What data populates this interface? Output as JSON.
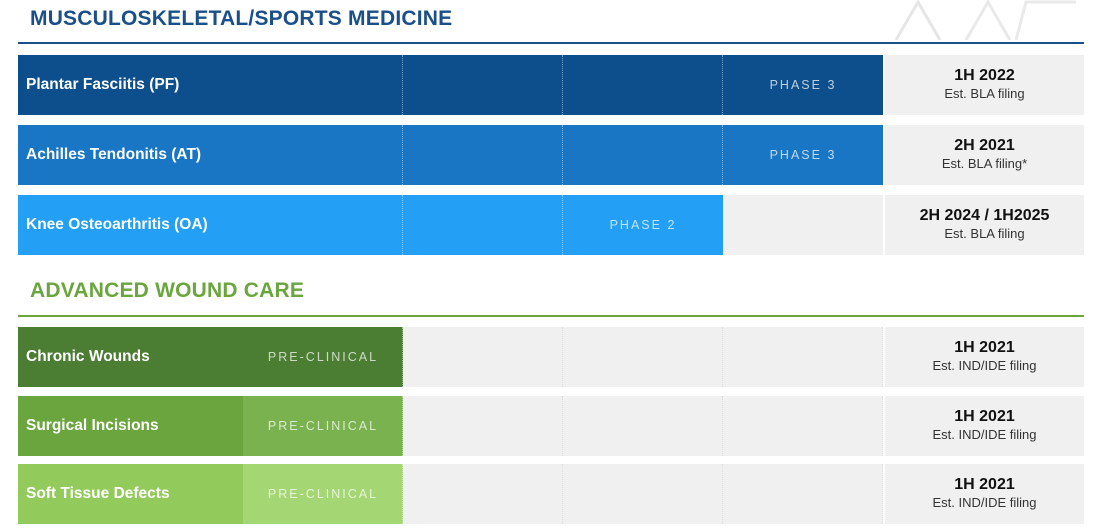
{
  "sections": [
    {
      "title": "MUSCULOSKELETAL/SPORTS MEDICINE",
      "color": "#1a4f8a",
      "rows": [
        {
          "label": "Plantar Fasciitis (PF)",
          "phase": "PHASE 3",
          "when": "1H 2022",
          "what": "Est. BLA filing",
          "color": "#0d4f8c"
        },
        {
          "label": "Achilles Tendonitis (AT)",
          "phase": "PHASE 3",
          "when": "2H 2021",
          "what": "Est. BLA filing*",
          "color": "#1976c4"
        },
        {
          "label": "Knee Osteoarthritis (OA)",
          "phase": "PHASE 2",
          "when": "2H 2024 / 1H2025",
          "what": "Est. BLA filing",
          "color": "#23a0f5"
        }
      ]
    },
    {
      "title": "ADVANCED WOUND CARE",
      "color": "#6aa63d",
      "rows": [
        {
          "label": "Chronic Wounds",
          "phase": "PRE-CLINICAL",
          "when": "1H 2021",
          "what": "Est. IND/IDE filing",
          "color": "#4b7d33",
          "phase_color": "#4b7d33"
        },
        {
          "label": "Surgical Incisions",
          "phase": "PRE-CLINICAL",
          "when": "1H 2021",
          "what": "Est. IND/IDE filing",
          "color": "#6aa63d",
          "phase_color": "#79b24f"
        },
        {
          "label": "Soft Tissue Defects",
          "phase": "PRE-CLINICAL",
          "when": "1H 2021",
          "what": "Est. IND/IDE filing",
          "color": "#92cb5b",
          "phase_color": "#a4d673"
        }
      ]
    }
  ]
}
